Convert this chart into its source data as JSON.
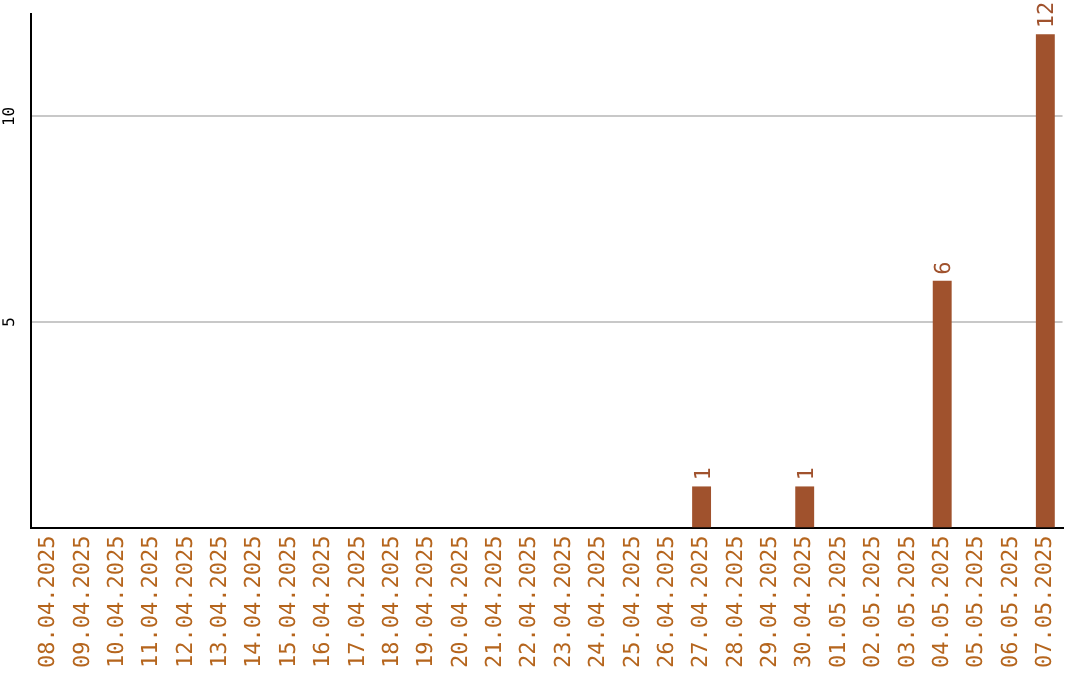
{
  "chart_data": {
    "type": "bar",
    "categories": [
      "08.04.2025",
      "09.04.2025",
      "10.04.2025",
      "11.04.2025",
      "12.04.2025",
      "13.04.2025",
      "14.04.2025",
      "15.04.2025",
      "16.04.2025",
      "17.04.2025",
      "18.04.2025",
      "19.04.2025",
      "20.04.2025",
      "21.04.2025",
      "22.04.2025",
      "23.04.2025",
      "24.04.2025",
      "25.04.2025",
      "26.04.2025",
      "27.04.2025",
      "28.04.2025",
      "29.04.2025",
      "30.04.2025",
      "01.05.2025",
      "02.05.2025",
      "03.05.2025",
      "04.05.2025",
      "05.05.2025",
      "06.05.2025",
      "07.05.2025"
    ],
    "values": [
      0,
      0,
      0,
      0,
      0,
      0,
      0,
      0,
      0,
      0,
      0,
      0,
      0,
      0,
      0,
      0,
      0,
      0,
      0,
      1,
      0,
      0,
      1,
      0,
      0,
      0,
      6,
      0,
      0,
      12
    ],
    "value_labels": [
      null,
      null,
      null,
      null,
      null,
      null,
      null,
      null,
      null,
      null,
      null,
      null,
      null,
      null,
      null,
      null,
      null,
      null,
      null,
      "1",
      null,
      null,
      "1",
      null,
      null,
      null,
      "6",
      null,
      null,
      "12"
    ],
    "color": "#a0522d",
    "ylim": [
      0,
      12.5
    ],
    "yticks": [
      5,
      10
    ],
    "grid": "y",
    "legend": false
  }
}
